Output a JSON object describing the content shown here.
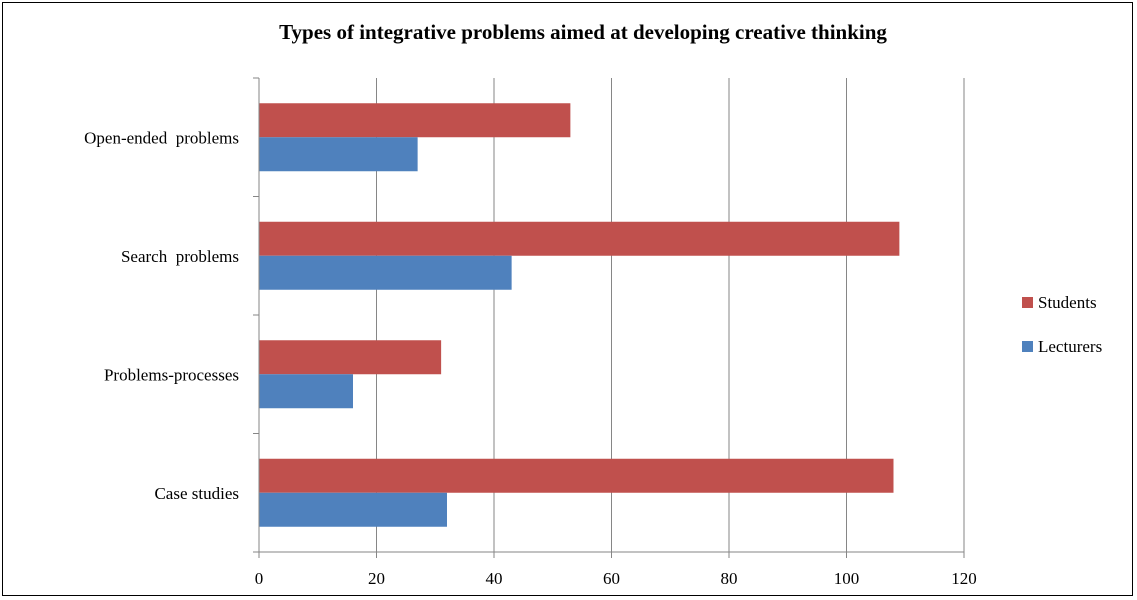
{
  "chart_data": {
    "type": "bar",
    "orientation": "horizontal",
    "title": "Types of integrative problems aimed at developing creative thinking",
    "xlabel": "",
    "ylabel": "",
    "categories": [
      "Open-ended  problems",
      "Search  problems",
      "Problems-processes",
      "Case studies"
    ],
    "series": [
      {
        "name": "Students",
        "color": "#C0504D",
        "values": [
          53,
          109,
          31,
          108
        ]
      },
      {
        "name": "Lecturers",
        "color": "#4F81BD",
        "values": [
          27,
          43,
          16,
          32
        ]
      }
    ],
    "xlim": [
      0,
      120
    ],
    "xticks": [
      0,
      20,
      40,
      60,
      80,
      100,
      120
    ],
    "grid": "vertical",
    "legend_position": "right"
  }
}
